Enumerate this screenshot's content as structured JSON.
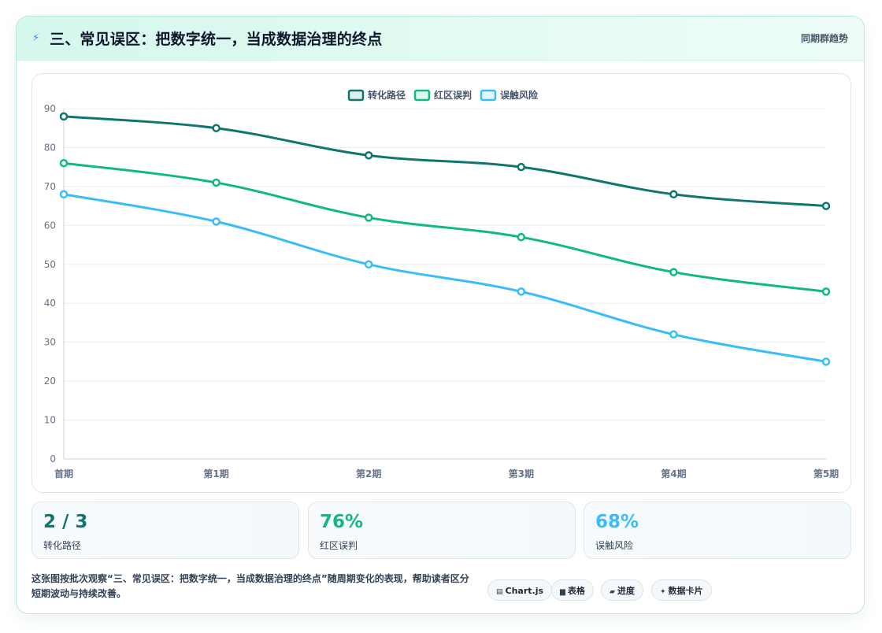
{
  "header": {
    "icon": "lightning-icon",
    "title": "三、常见误区：把数字统一，当成数据治理的终点",
    "subtitle": "同期群趋势"
  },
  "chart_data": {
    "type": "line",
    "categories": [
      "首期",
      "第1期",
      "第2期",
      "第3期",
      "第4期",
      "第5期"
    ],
    "series": [
      {
        "name": "转化路径",
        "color": "#0f766e",
        "values": [
          88,
          85,
          78,
          75,
          68,
          65
        ]
      },
      {
        "name": "红区误判",
        "color": "#10b981",
        "values": [
          76,
          71,
          62,
          57,
          48,
          43
        ]
      },
      {
        "name": "误触风险",
        "color": "#38bdf8",
        "values": [
          68,
          61,
          50,
          43,
          32,
          25
        ]
      }
    ],
    "ylim": [
      0,
      90
    ],
    "yticks": [
      0,
      10,
      20,
      30,
      40,
      50,
      60,
      70,
      80,
      90
    ],
    "grid": true,
    "legend": "top-center",
    "title": "",
    "xlabel": "",
    "ylabel": ""
  },
  "stats": [
    {
      "value": "2 / 3",
      "label": "转化路径",
      "color": "#0f766e"
    },
    {
      "value": "76%",
      "label": "红区误判",
      "color": "#10b981"
    },
    {
      "value": "68%",
      "label": "误触风险",
      "color": "#38bdf8"
    }
  ],
  "footer": {
    "description": "这张图按批次观察“三、常见误区：把数字统一，当成数据治理的终点”随周期变化的表现，帮助读者区分短期波动与持续改善。",
    "tags": [
      {
        "icon": "chart-icon",
        "glyph": "▤",
        "label": "Chart.js"
      },
      {
        "icon": "table-icon",
        "glyph": "▆",
        "label": "表格"
      },
      {
        "icon": "progress-icon",
        "glyph": "▰",
        "label": "进度"
      },
      {
        "icon": "sparkle-icon",
        "glyph": "✦",
        "label": "数据卡片"
      }
    ]
  }
}
